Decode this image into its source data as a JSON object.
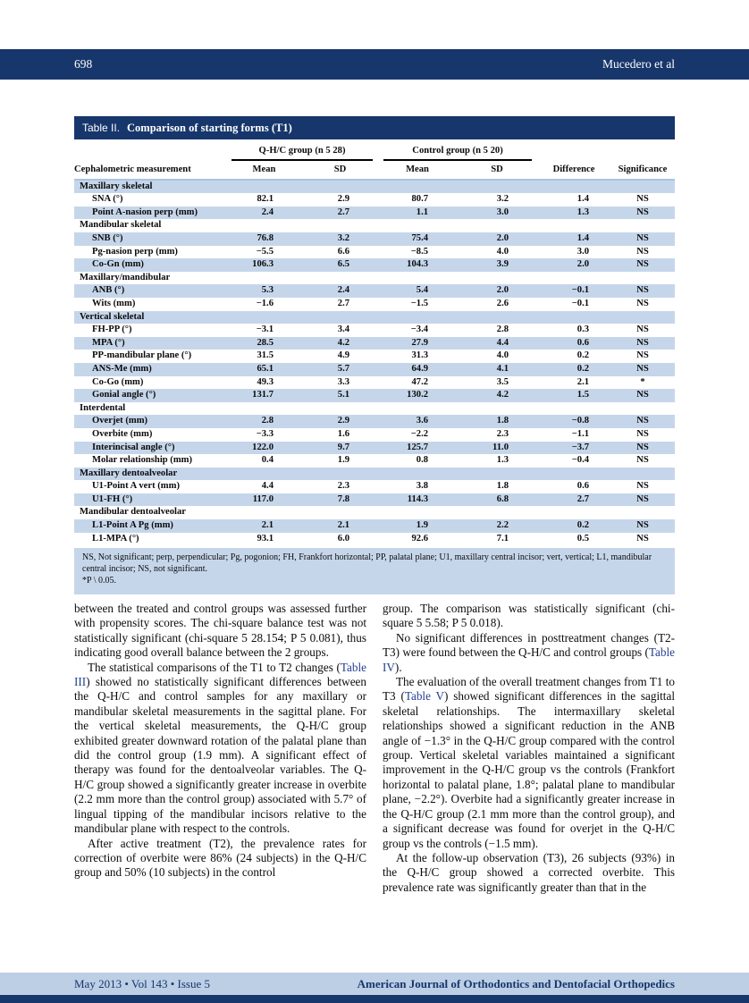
{
  "colors": {
    "navy_bar": "#17366B",
    "row_shade": "#C6D6EA",
    "footer_band": "#BCCFE5",
    "link_blue": "#223E8F"
  },
  "header": {
    "page_number": "698",
    "running_title": "Mucedero et al"
  },
  "table": {
    "label": "Table II.",
    "title": "Comparison of starting forms (T1)",
    "group_headers": [
      "Q-H/C group (n 5 28)",
      "Control group (n 5 20)"
    ],
    "columns": [
      "Cephalometric measurement",
      "Mean",
      "SD",
      "Mean",
      "SD",
      "Difference",
      "Significance"
    ],
    "rows": [
      {
        "t": "section",
        "label": "Maxillary skeletal"
      },
      {
        "t": "data",
        "label": "SNA (°)",
        "m1": "82.1",
        "s1": "2.9",
        "m2": "80.7",
        "s2": "3.2",
        "d": "1.4",
        "sig": "NS"
      },
      {
        "t": "data",
        "label": "Point A-nasion perp (mm)",
        "m1": "2.4",
        "s1": "2.7",
        "m2": "1.1",
        "s2": "3.0",
        "d": "1.3",
        "sig": "NS"
      },
      {
        "t": "section",
        "label": "Mandibular skeletal"
      },
      {
        "t": "data",
        "label": "SNB (°)",
        "m1": "76.8",
        "s1": "3.2",
        "m2": "75.4",
        "s2": "2.0",
        "d": "1.4",
        "sig": "NS"
      },
      {
        "t": "data",
        "label": "Pg-nasion perp (mm)",
        "m1": "−5.5",
        "s1": "6.6",
        "m2": "−8.5",
        "s2": "4.0",
        "d": "3.0",
        "sig": "NS"
      },
      {
        "t": "data",
        "label": "Co-Gn (mm)",
        "m1": "106.3",
        "s1": "6.5",
        "m2": "104.3",
        "s2": "3.9",
        "d": "2.0",
        "sig": "NS"
      },
      {
        "t": "section",
        "label": "Maxillary/mandibular"
      },
      {
        "t": "data",
        "label": "ANB (°)",
        "m1": "5.3",
        "s1": "2.4",
        "m2": "5.4",
        "s2": "2.0",
        "d": "−0.1",
        "sig": "NS"
      },
      {
        "t": "data",
        "label": "Wits (mm)",
        "m1": "−1.6",
        "s1": "2.7",
        "m2": "−1.5",
        "s2": "2.6",
        "d": "−0.1",
        "sig": "NS"
      },
      {
        "t": "section",
        "label": "Vertical skeletal"
      },
      {
        "t": "data",
        "label": "FH-PP (°)",
        "m1": "−3.1",
        "s1": "3.4",
        "m2": "−3.4",
        "s2": "2.8",
        "d": "0.3",
        "sig": "NS"
      },
      {
        "t": "data",
        "label": "MPA (°)",
        "m1": "28.5",
        "s1": "4.2",
        "m2": "27.9",
        "s2": "4.4",
        "d": "0.6",
        "sig": "NS"
      },
      {
        "t": "data",
        "label": "PP-mandibular plane (°)",
        "m1": "31.5",
        "s1": "4.9",
        "m2": "31.3",
        "s2": "4.0",
        "d": "0.2",
        "sig": "NS"
      },
      {
        "t": "data",
        "label": "ANS-Me (mm)",
        "m1": "65.1",
        "s1": "5.7",
        "m2": "64.9",
        "s2": "4.1",
        "d": "0.2",
        "sig": "NS"
      },
      {
        "t": "data",
        "label": "Co-Go (mm)",
        "m1": "49.3",
        "s1": "3.3",
        "m2": "47.2",
        "s2": "3.5",
        "d": "2.1",
        "sig": "*"
      },
      {
        "t": "data",
        "label": "Gonial angle (°)",
        "m1": "131.7",
        "s1": "5.1",
        "m2": "130.2",
        "s2": "4.2",
        "d": "1.5",
        "sig": "NS"
      },
      {
        "t": "section",
        "label": "Interdental"
      },
      {
        "t": "data",
        "label": "Overjet (mm)",
        "m1": "2.8",
        "s1": "2.9",
        "m2": "3.6",
        "s2": "1.8",
        "d": "−0.8",
        "sig": "NS"
      },
      {
        "t": "data",
        "label": "Overbite (mm)",
        "m1": "−3.3",
        "s1": "1.6",
        "m2": "−2.2",
        "s2": "2.3",
        "d": "−1.1",
        "sig": "NS"
      },
      {
        "t": "data",
        "label": "Interincisal angle (°)",
        "m1": "122.0",
        "s1": "9.7",
        "m2": "125.7",
        "s2": "11.0",
        "d": "−3.7",
        "sig": "NS"
      },
      {
        "t": "data",
        "label": "Molar relationship (mm)",
        "m1": "0.4",
        "s1": "1.9",
        "m2": "0.8",
        "s2": "1.3",
        "d": "−0.4",
        "sig": "NS"
      },
      {
        "t": "section",
        "label": "Maxillary dentoalveolar"
      },
      {
        "t": "data",
        "label": "U1-Point A vert (mm)",
        "m1": "4.4",
        "s1": "2.3",
        "m2": "3.8",
        "s2": "1.8",
        "d": "0.6",
        "sig": "NS"
      },
      {
        "t": "data",
        "label": "U1-FH (°)",
        "m1": "117.0",
        "s1": "7.8",
        "m2": "114.3",
        "s2": "6.8",
        "d": "2.7",
        "sig": "NS"
      },
      {
        "t": "section",
        "label": "Mandibular dentoalveolar"
      },
      {
        "t": "data",
        "label": "L1-Point A Pg (mm)",
        "m1": "2.1",
        "s1": "2.1",
        "m2": "1.9",
        "s2": "2.2",
        "d": "0.2",
        "sig": "NS"
      },
      {
        "t": "data",
        "label": "L1-MPA (°)",
        "m1": "93.1",
        "s1": "6.0",
        "m2": "92.6",
        "s2": "7.1",
        "d": "0.5",
        "sig": "NS"
      }
    ],
    "footnote": "NS, Not significant; perp, perpendicular; Pg, pogonion; FH, Frankfort horizontal; PP, palatal plane; U1, maxillary central incisor; vert, vertical; L1, mandibular central incisor; NS, not significant.",
    "footnote2": "*P \\ 0.05."
  },
  "article": {
    "left_column": {
      "paragraphs": [
        {
          "indent": false,
          "segments": [
            {
              "text": "between the treated and control groups was assessed further with propensity scores. The chi-square balance test was not statistically significant (chi-square 5 28.154; P 5 0.081), thus indicating good overall balance between the 2 groups."
            }
          ]
        },
        {
          "indent": true,
          "segments": [
            {
              "text": "The statistical comparisons of the T1 to T2 changes ("
            },
            {
              "text": "Table III",
              "link": true
            },
            {
              "text": ") showed no statistically significant differences between the Q-H/C and control samples for any maxillary or mandibular skeletal measurements in the sagittal plane. For the vertical skeletal measurements, the Q-H/C group exhibited greater downward rotation of the palatal plane than did the control group (1.9 mm). A significant effect of therapy was found for the dentoalveolar variables. The Q-H/C group showed a significantly greater increase in overbite (2.2 mm more than the control group) associated with 5.7° of lingual tipping of the mandibular incisors relative to the mandibular plane with respect to the controls."
            }
          ]
        },
        {
          "indent": true,
          "segments": [
            {
              "text": "After active treatment (T2), the prevalence rates for correction of overbite were 86% (24 subjects) in the Q-H/C group and 50% (10 subjects) in the control"
            }
          ]
        }
      ]
    },
    "right_column": {
      "paragraphs": [
        {
          "indent": false,
          "segments": [
            {
              "text": "group. The comparison was statistically significant (chi-square 5 5.58; P 5 0.018)."
            }
          ]
        },
        {
          "indent": true,
          "segments": [
            {
              "text": "No significant differences in posttreatment changes (T2-T3) were found between the Q-H/C and control groups ("
            },
            {
              "text": "Table IV",
              "link": true
            },
            {
              "text": ")."
            }
          ]
        },
        {
          "indent": true,
          "segments": [
            {
              "text": "The evaluation of the overall treatment changes from T1 to T3 ("
            },
            {
              "text": "Table V",
              "link": true
            },
            {
              "text": ") showed significant differences in the sagittal skeletal relationships. The intermaxillary skeletal relationships showed a significant reduction in the ANB angle of −1.3° in the Q-H/C group compared with the control group. Vertical skeletal variables maintained a significant improvement in the Q-H/C group vs the controls (Frankfort horizontal to palatal plane, 1.8°; palatal plane to mandibular plane, −2.2°). Overbite had a significantly greater increase in the Q-H/C group (2.1 mm more than the control group), and a significant decrease was found for overjet in the Q-H/C group vs the controls (−1.5 mm)."
            }
          ]
        },
        {
          "indent": true,
          "segments": [
            {
              "text": "At the follow-up observation (T3), 26 subjects (93%) in the Q-H/C group showed a corrected overbite. This prevalence rate was significantly greater than that in the"
            }
          ]
        }
      ]
    }
  },
  "footer": {
    "left": "May 2013 • Vol 143 • Issue 5",
    "right": "American Journal of Orthodontics and Dentofacial Orthopedics"
  }
}
